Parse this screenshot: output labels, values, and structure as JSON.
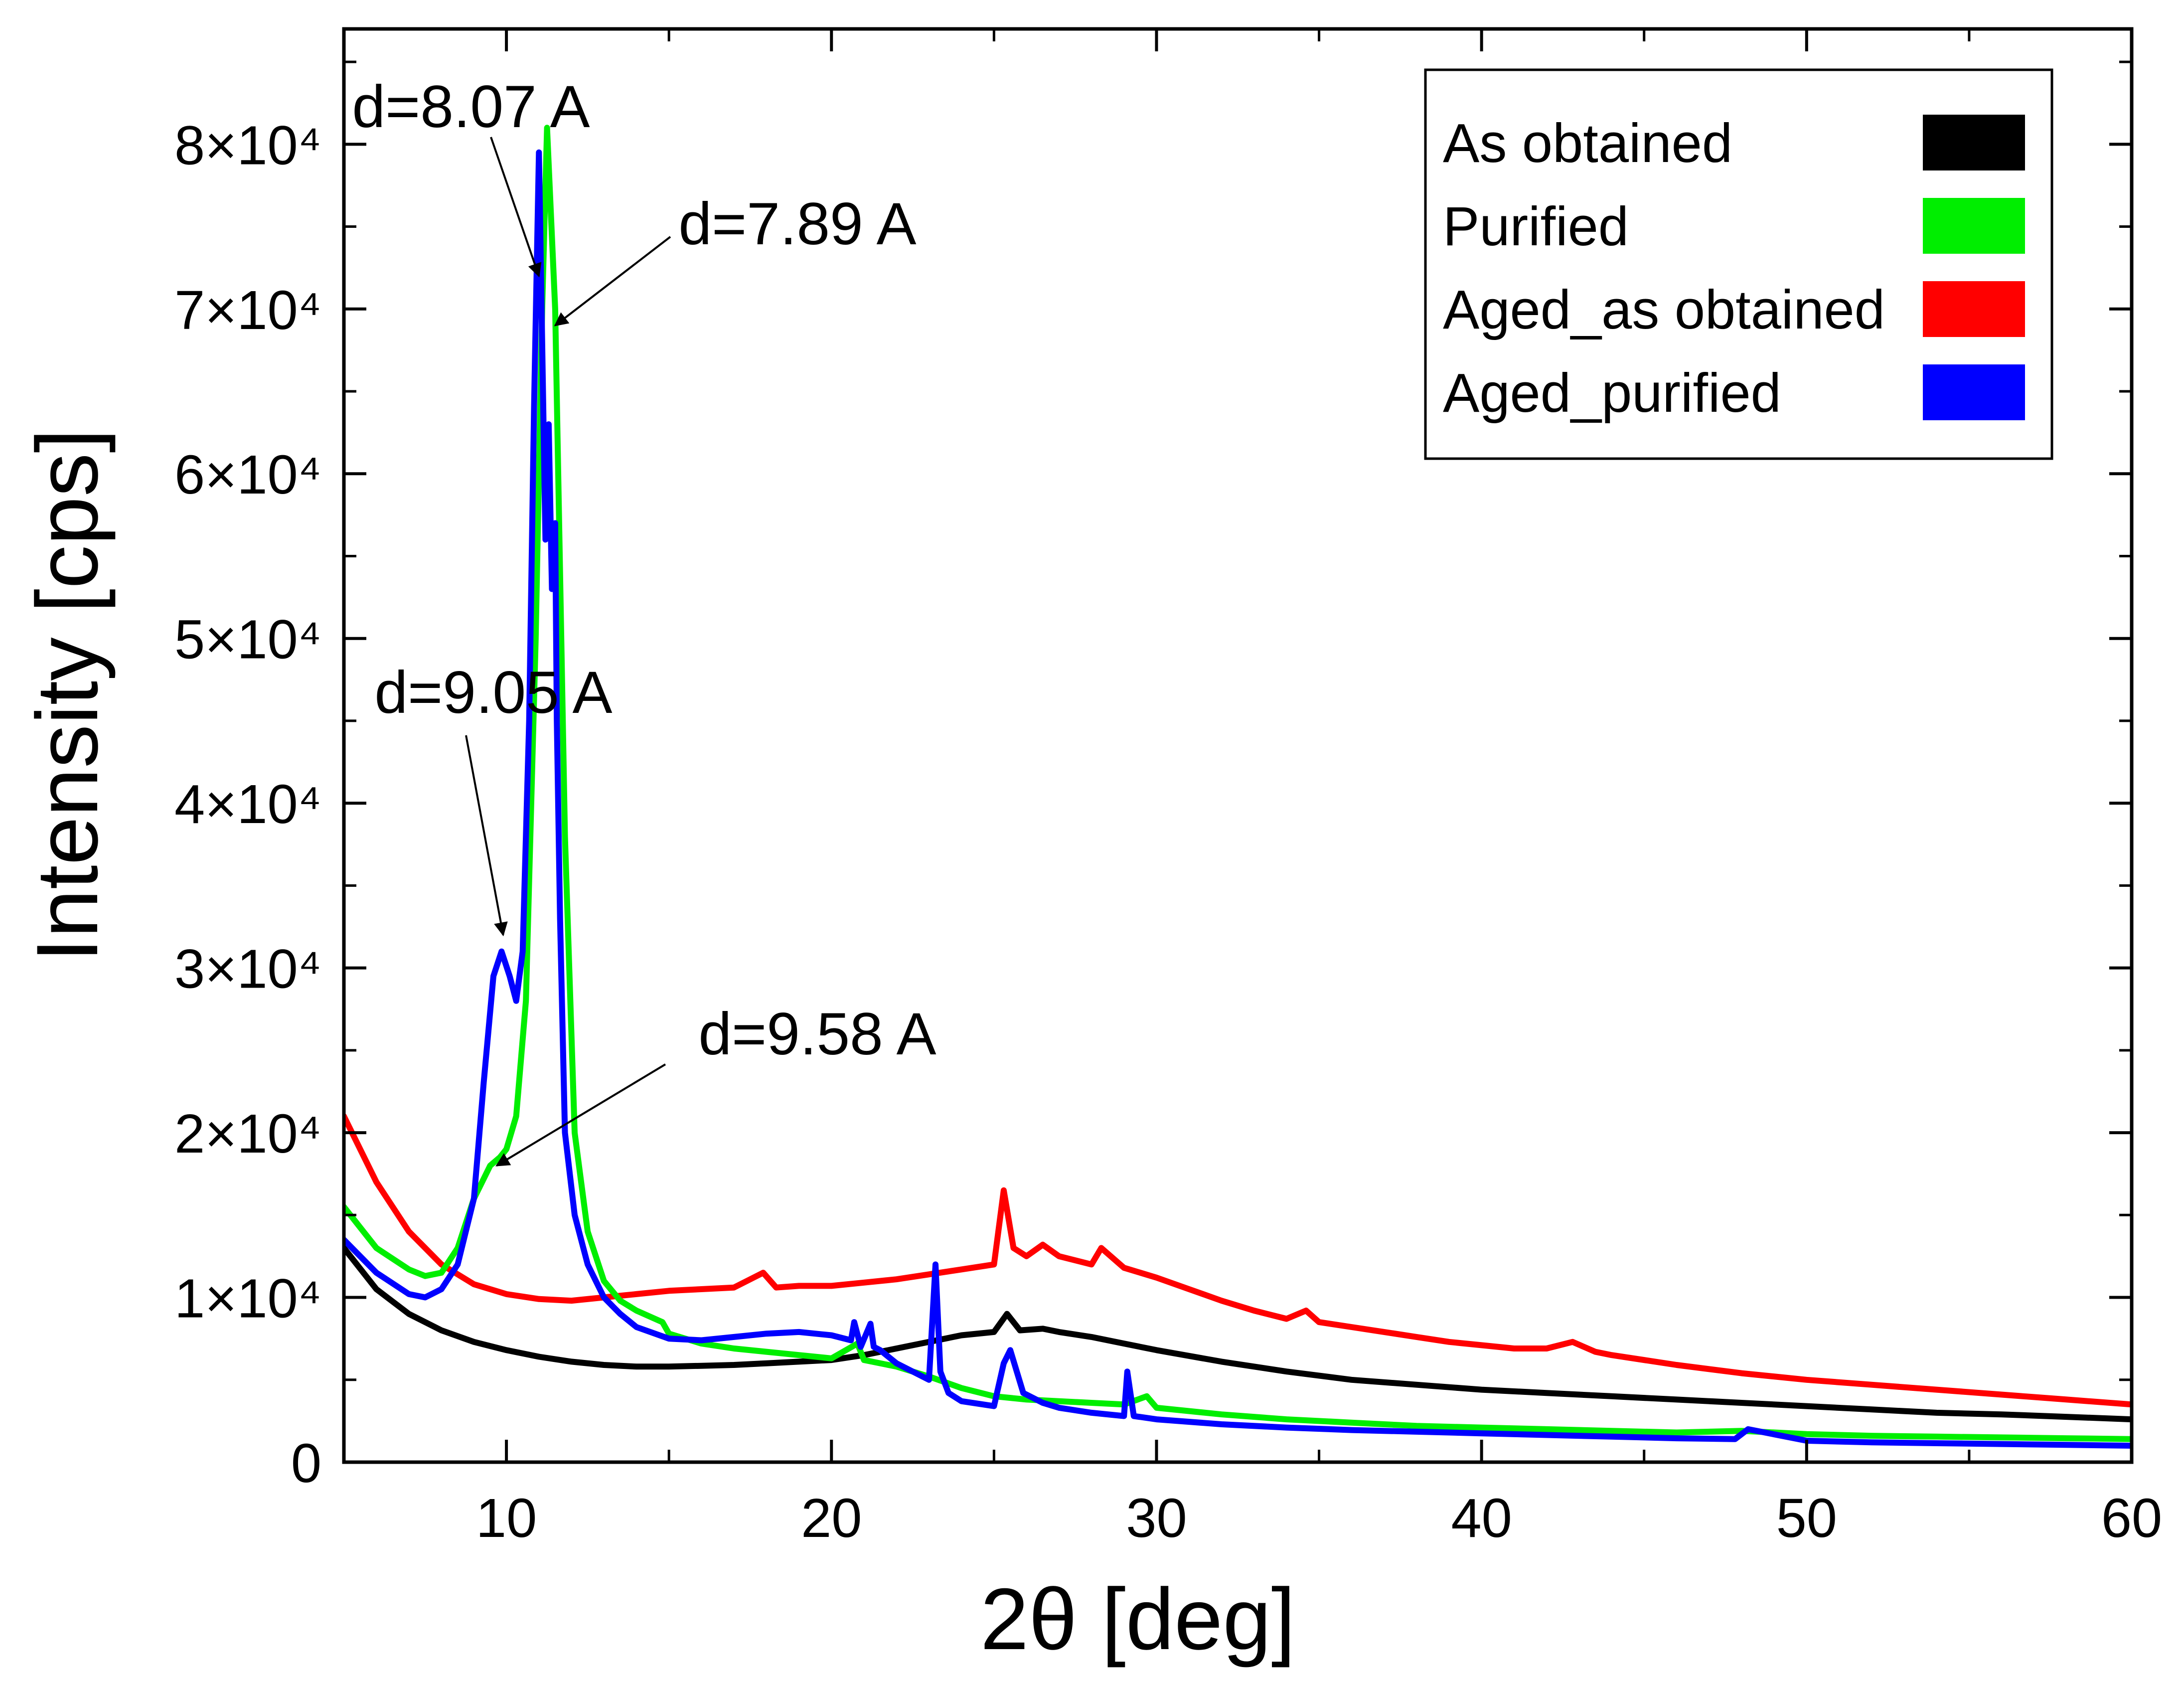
{
  "chart_data": {
    "type": "line",
    "xlabel": "2θ [deg]",
    "ylabel": "Intensity [cps]",
    "xlim": [
      5,
      60
    ],
    "ylim": [
      0,
      87000
    ],
    "x_ticks": [
      10,
      20,
      30,
      40,
      50,
      60
    ],
    "x_tick_labels": [
      "10",
      "20",
      "30",
      "40",
      "50",
      "60"
    ],
    "y_ticks": [
      0,
      10000,
      20000,
      30000,
      40000,
      50000,
      60000,
      70000,
      80000
    ],
    "y_tick_labels": [
      "0",
      "1×10⁴",
      "2×10⁴",
      "3×10⁴",
      "4×10⁴",
      "5×10⁴",
      "6×10⁴",
      "7×10⁴",
      "8×10⁴"
    ],
    "grid": false,
    "legend_position": "top-right",
    "series": [
      {
        "name": "As obtained",
        "color": "#000000",
        "x": [
          5,
          6,
          7,
          8,
          9,
          10,
          11,
          12,
          13,
          14,
          15,
          16,
          17,
          18,
          19,
          20,
          21,
          22,
          23,
          24,
          25,
          25.4,
          25.8,
          26.5,
          27,
          28,
          29,
          30,
          32,
          34,
          36,
          38,
          40,
          42,
          44,
          46,
          48,
          50,
          52,
          54,
          56,
          58,
          60
        ],
        "y": [
          13000,
          10500,
          9000,
          8000,
          7300,
          6800,
          6400,
          6100,
          5900,
          5800,
          5800,
          5850,
          5900,
          6000,
          6100,
          6200,
          6500,
          6900,
          7300,
          7700,
          7900,
          9000,
          8000,
          8100,
          7900,
          7600,
          7200,
          6800,
          6100,
          5500,
          5000,
          4700,
          4400,
          4200,
          4000,
          3800,
          3600,
          3400,
          3200,
          3000,
          2900,
          2750,
          2600
        ]
      },
      {
        "name": "Purified",
        "color": "#00ee00",
        "x": [
          5,
          6,
          7,
          7.5,
          8,
          8.5,
          9,
          9.5,
          9.8,
          10,
          10.3,
          10.6,
          10.9,
          11.1,
          11.25,
          11.5,
          11.8,
          12.1,
          12.5,
          13,
          13.5,
          14,
          14.8,
          15,
          16,
          17,
          18,
          19,
          20,
          20.8,
          21,
          22,
          23,
          24,
          25,
          26,
          27,
          28,
          29,
          29.7,
          30,
          32,
          34,
          36,
          38,
          40,
          42,
          44,
          46,
          48,
          50,
          52,
          54,
          56,
          58,
          60
        ],
        "y": [
          15500,
          13000,
          11700,
          11300,
          11500,
          13000,
          16000,
          18000,
          18500,
          19000,
          21000,
          28000,
          50000,
          70000,
          81000,
          70000,
          38000,
          20000,
          14000,
          11000,
          9800,
          9200,
          8500,
          7800,
          7200,
          6900,
          6700,
          6500,
          6300,
          7200,
          6200,
          5800,
          5200,
          4500,
          4000,
          3800,
          3700,
          3600,
          3500,
          4000,
          3300,
          2900,
          2600,
          2400,
          2200,
          2100,
          2000,
          1900,
          1800,
          1900,
          1700,
          1600,
          1550,
          1500,
          1450,
          1400
        ]
      },
      {
        "name": "Aged_as obtained",
        "color": "#ff0000",
        "x": [
          5,
          6,
          7,
          8,
          9,
          10,
          11,
          12,
          13,
          14,
          15,
          16,
          17,
          17.9,
          18.3,
          19,
          20,
          21,
          22,
          23,
          24,
          25,
          25.3,
          25.6,
          26,
          26.5,
          27,
          28,
          28.3,
          29,
          30,
          31,
          32,
          33,
          34,
          34.6,
          35,
          36,
          37,
          38,
          39,
          40,
          41,
          42,
          42.8,
          43.5,
          44,
          46,
          48,
          50,
          52,
          54,
          56,
          58,
          60
        ],
        "y": [
          21000,
          17000,
          14000,
          12000,
          10800,
          10200,
          9900,
          9800,
          10000,
          10200,
          10400,
          10500,
          10600,
          11500,
          10600,
          10700,
          10700,
          10900,
          11100,
          11400,
          11700,
          12000,
          16500,
          13000,
          12500,
          13200,
          12500,
          12000,
          13000,
          11800,
          11200,
          10500,
          9800,
          9200,
          8700,
          9200,
          8500,
          8200,
          7900,
          7600,
          7300,
          7100,
          6900,
          6900,
          7300,
          6700,
          6500,
          5900,
          5400,
          5000,
          4700,
          4400,
          4100,
          3800,
          3500
        ]
      },
      {
        "name": "Aged_purified",
        "color": "#0000ff",
        "x": [
          5,
          6,
          7,
          7.5,
          8,
          8.5,
          9,
          9.3,
          9.6,
          9.85,
          10.1,
          10.3,
          10.5,
          10.7,
          10.85,
          11.0,
          11.1,
          11.2,
          11.3,
          11.4,
          11.5,
          11.55,
          11.65,
          11.8,
          12.1,
          12.5,
          13,
          13.5,
          14,
          15,
          16,
          17,
          18,
          19,
          20,
          20.6,
          20.7,
          20.9,
          21.2,
          21.3,
          21.5,
          22,
          23,
          23.2,
          23.35,
          23.6,
          24,
          25,
          25.3,
          25.5,
          25.9,
          26.5,
          27,
          28,
          29,
          29.1,
          29.3,
          30,
          32,
          34,
          36,
          38,
          40,
          42,
          44,
          46,
          47.8,
          48.2,
          50,
          52,
          54,
          56,
          58,
          60
        ],
        "y": [
          13500,
          11500,
          10200,
          10000,
          10500,
          12000,
          16000,
          23000,
          29500,
          31000,
          29500,
          28000,
          31000,
          45000,
          64000,
          79500,
          68000,
          56000,
          63000,
          53000,
          57000,
          45000,
          33000,
          20000,
          15000,
          12000,
          10000,
          9000,
          8200,
          7500,
          7400,
          7600,
          7800,
          7900,
          7700,
          7400,
          8500,
          7000,
          8400,
          7000,
          6800,
          6000,
          5000,
          12000,
          5500,
          4200,
          3700,
          3400,
          6000,
          6800,
          4200,
          3600,
          3300,
          3000,
          2800,
          5500,
          2800,
          2600,
          2300,
          2100,
          1950,
          1850,
          1750,
          1650,
          1550,
          1450,
          1400,
          2000,
          1300,
          1200,
          1150,
          1100,
          1050,
          1000
        ]
      }
    ],
    "annotations": [
      {
        "text": "d=8.07 A",
        "target_x": 11.0,
        "target_y": 72000
      },
      {
        "text": "d=7.89 A",
        "target_x": 11.5,
        "target_y": 69000
      },
      {
        "text": "d=9.05 A",
        "target_x": 9.9,
        "target_y": 32000
      },
      {
        "text": "d=9.58 A",
        "target_x": 9.7,
        "target_y": 18000
      }
    ]
  }
}
